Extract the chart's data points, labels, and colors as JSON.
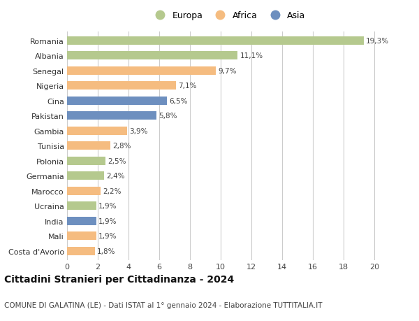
{
  "categories": [
    "Romania",
    "Albania",
    "Senegal",
    "Nigeria",
    "Cina",
    "Pakistan",
    "Gambia",
    "Tunisia",
    "Polonia",
    "Germania",
    "Marocco",
    "Ucraina",
    "India",
    "Mali",
    "Costa d'Avorio"
  ],
  "values": [
    19.3,
    11.1,
    9.7,
    7.1,
    6.5,
    5.8,
    3.9,
    2.8,
    2.5,
    2.4,
    2.2,
    1.9,
    1.9,
    1.9,
    1.8
  ],
  "labels": [
    "19,3%",
    "11,1%",
    "9,7%",
    "7,1%",
    "6,5%",
    "5,8%",
    "3,9%",
    "2,8%",
    "2,5%",
    "2,4%",
    "2,2%",
    "1,9%",
    "1,9%",
    "1,9%",
    "1,8%"
  ],
  "continent": [
    "Europa",
    "Europa",
    "Africa",
    "Africa",
    "Asia",
    "Asia",
    "Africa",
    "Africa",
    "Europa",
    "Europa",
    "Africa",
    "Europa",
    "Asia",
    "Africa",
    "Africa"
  ],
  "color_map": {
    "Europa": "#b5c98e",
    "Africa": "#f5bc80",
    "Asia": "#6d8fbf"
  },
  "xlim": [
    0,
    21
  ],
  "xticks": [
    0,
    2,
    4,
    6,
    8,
    10,
    12,
    14,
    16,
    18,
    20
  ],
  "title": "Cittadini Stranieri per Cittadinanza - 2024",
  "subtitle": "COMUNE DI GALATINA (LE) - Dati ISTAT al 1° gennaio 2024 - Elaborazione TUTTITALIA.IT",
  "background_color": "#ffffff",
  "grid_color": "#cccccc",
  "bar_height": 0.55,
  "label_fontsize": 7.5,
  "title_fontsize": 10,
  "subtitle_fontsize": 7.5,
  "tick_fontsize": 8,
  "ytick_fontsize": 8
}
